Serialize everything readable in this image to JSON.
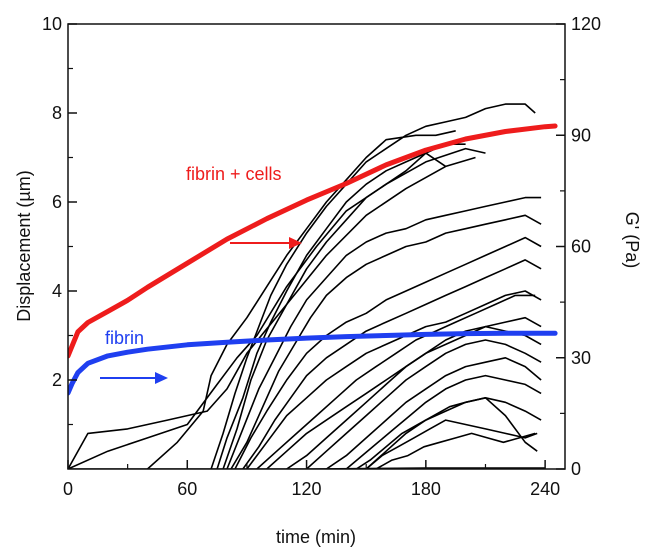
{
  "chart_data": {
    "type": "line",
    "xlabel": "time (min)",
    "ylabel": "Displacement (µm)",
    "y2label": "G' (Pa)",
    "xlim": [
      0,
      250
    ],
    "ylim": [
      0,
      10
    ],
    "y2lim": [
      0,
      120
    ],
    "x_ticks": [
      "0",
      "60",
      "120",
      "180",
      "240"
    ],
    "y_ticks": [
      "2",
      "4",
      "6",
      "8",
      "10"
    ],
    "y2_ticks": [
      "0",
      "30",
      "60",
      "90",
      "120"
    ],
    "annotations": {
      "fibrin_cells": "fibrin + cells",
      "fibrin": "fibrin"
    },
    "colors": {
      "fibrin_cells": "#ee1c1c",
      "fibrin": "#1f3ff0",
      "traces": "#000000"
    },
    "series": [
      {
        "name": "fibrin + cells",
        "axis": "right",
        "x": [
          0,
          5,
          10,
          20,
          30,
          40,
          60,
          80,
          100,
          120,
          140,
          160,
          180,
          200,
          220,
          240,
          245
        ],
        "y": [
          30.5,
          37,
          39.5,
          42.5,
          45.5,
          49,
          55.5,
          62,
          67.5,
          72.5,
          77,
          82,
          86,
          89,
          91,
          92.3,
          92.5
        ]
      },
      {
        "name": "fibrin",
        "axis": "right",
        "x": [
          0,
          2,
          5,
          10,
          20,
          30,
          40,
          60,
          80,
          100,
          120,
          140,
          160,
          180,
          200,
          220,
          240,
          245
        ],
        "y": [
          20.5,
          23,
          26,
          28.5,
          30.5,
          31.5,
          32.3,
          33.5,
          34.2,
          34.8,
          35.3,
          35.7,
          36,
          36.3,
          36.5,
          36.6,
          36.6,
          36.6
        ]
      }
    ],
    "traces": [
      {
        "x": [
          0,
          10,
          30,
          50,
          70,
          80,
          90,
          110,
          130,
          150,
          170,
          190,
          205
        ],
        "y": [
          0,
          0.8,
          0.9,
          1.1,
          1.3,
          1.8,
          2.6,
          3.7,
          4.8,
          5.7,
          6.3,
          6.8,
          7.0
        ]
      },
      {
        "x": [
          0,
          20,
          40,
          60,
          75,
          85,
          95,
          110,
          125,
          140,
          160,
          180,
          200,
          210
        ],
        "y": [
          0,
          0.4,
          0.7,
          1.0,
          1.9,
          2.5,
          3.0,
          4.1,
          5.0,
          5.8,
          6.4,
          6.9,
          7.2,
          7.1
        ]
      },
      {
        "x": [
          40,
          55,
          68,
          72,
          80,
          90,
          100,
          110,
          120,
          130,
          140,
          150,
          160,
          175,
          185,
          195
        ],
        "y": [
          0,
          0.6,
          1.3,
          2.1,
          2.8,
          3.4,
          4.1,
          4.8,
          5.4,
          6.0,
          6.5,
          7.0,
          7.4,
          7.5,
          7.5,
          7.6
        ]
      },
      {
        "x": [
          72,
          78,
          84,
          90,
          96,
          102,
          110,
          120,
          130,
          140,
          150,
          160,
          170,
          180,
          190,
          200,
          210,
          220,
          230,
          235
        ],
        "y": [
          0,
          0.8,
          1.7,
          2.5,
          3.2,
          3.9,
          4.6,
          5.3,
          5.9,
          6.4,
          6.9,
          7.2,
          7.5,
          7.7,
          7.8,
          7.9,
          8.1,
          8.2,
          8.2,
          8.0
        ]
      },
      {
        "x": [
          75,
          80,
          88,
          95,
          102,
          110,
          120,
          130,
          140,
          150,
          160,
          170,
          180,
          190,
          200
        ],
        "y": [
          0,
          0.7,
          1.6,
          2.6,
          3.3,
          4.0,
          4.8,
          5.4,
          6.0,
          6.4,
          6.7,
          6.9,
          7.1,
          7.3,
          7.3
        ]
      },
      {
        "x": [
          78,
          85,
          92,
          100,
          110,
          120,
          130,
          140,
          150,
          160,
          170,
          180,
          190
        ],
        "y": [
          0,
          0.9,
          2.0,
          2.9,
          3.7,
          4.5,
          5.1,
          5.6,
          6.1,
          6.4,
          6.7,
          7.1,
          6.8
        ]
      },
      {
        "x": [
          80,
          88,
          96,
          104,
          112,
          120,
          130,
          140,
          150,
          160,
          170,
          180,
          190,
          200,
          210,
          220,
          230,
          238
        ],
        "y": [
          0,
          0.9,
          1.8,
          2.5,
          3.2,
          3.8,
          4.3,
          4.8,
          5.1,
          5.3,
          5.4,
          5.6,
          5.7,
          5.8,
          5.9,
          6.0,
          6.1,
          6.1
        ]
      },
      {
        "x": [
          82,
          90,
          98,
          106,
          114,
          122,
          130,
          140,
          150,
          160,
          170,
          180,
          190,
          200,
          210,
          220,
          230,
          238
        ],
        "y": [
          0,
          0.6,
          1.4,
          2.2,
          2.8,
          3.4,
          3.9,
          4.3,
          4.6,
          4.8,
          5.0,
          5.1,
          5.3,
          5.4,
          5.5,
          5.6,
          5.7,
          5.5
        ]
      },
      {
        "x": [
          84,
          92,
          100,
          110,
          120,
          130,
          140,
          150,
          160,
          170,
          180,
          190,
          200,
          210,
          220,
          230,
          238
        ],
        "y": [
          0,
          0.7,
          1.3,
          2.0,
          2.6,
          3.0,
          3.3,
          3.5,
          3.8,
          4.0,
          4.2,
          4.4,
          4.6,
          4.8,
          5.0,
          5.2,
          5.0
        ]
      },
      {
        "x": [
          88,
          96,
          104,
          112,
          120,
          130,
          140,
          150,
          160,
          170,
          180,
          190,
          200,
          210,
          220,
          230,
          238
        ],
        "y": [
          0,
          0.5,
          1.1,
          1.6,
          2.1,
          2.5,
          2.8,
          3.1,
          3.3,
          3.5,
          3.7,
          3.9,
          4.1,
          4.3,
          4.5,
          4.7,
          4.5
        ]
      },
      {
        "x": [
          90,
          100,
          110,
          120,
          130,
          140,
          150,
          160,
          170,
          180,
          190,
          200,
          210,
          220,
          230,
          238
        ],
        "y": [
          0,
          0.6,
          1.2,
          1.6,
          2.0,
          2.3,
          2.6,
          2.8,
          3.0,
          3.2,
          3.3,
          3.5,
          3.7,
          3.9,
          4.0,
          3.8
        ]
      },
      {
        "x": [
          95,
          105,
          115,
          125,
          135,
          145,
          155,
          165,
          175,
          185,
          195,
          205,
          215,
          225,
          235
        ],
        "y": [
          0,
          0.4,
          0.8,
          1.2,
          1.6,
          2.0,
          2.3,
          2.6,
          2.9,
          3.1,
          3.3,
          3.5,
          3.7,
          3.9,
          3.9
        ]
      },
      {
        "x": [
          100,
          110,
          120,
          130,
          140,
          150,
          160,
          170,
          180,
          190,
          200,
          210,
          220,
          230,
          238
        ],
        "y": [
          0,
          0.4,
          0.8,
          1.1,
          1.4,
          1.7,
          2.0,
          2.3,
          2.6,
          2.8,
          3.0,
          3.2,
          3.3,
          3.4,
          3.2
        ]
      },
      {
        "x": [
          110,
          120,
          130,
          140,
          150,
          160,
          170,
          180,
          190,
          200,
          210,
          220,
          230,
          238
        ],
        "y": [
          0,
          0.3,
          0.7,
          1.1,
          1.5,
          1.9,
          2.3,
          2.6,
          2.9,
          3.1,
          3.2,
          3.1,
          3.0,
          2.8
        ]
      },
      {
        "x": [
          120,
          130,
          140,
          150,
          160,
          170,
          180,
          190,
          200,
          210,
          220,
          230,
          238
        ],
        "y": [
          0,
          0.4,
          0.8,
          1.2,
          1.6,
          2.0,
          2.3,
          2.6,
          2.8,
          2.9,
          2.8,
          2.6,
          2.4
        ]
      },
      {
        "x": [
          130,
          140,
          150,
          160,
          170,
          180,
          190,
          200,
          210,
          220,
          230,
          238
        ],
        "y": [
          0,
          0.3,
          0.7,
          1.1,
          1.5,
          1.8,
          2.1,
          2.3,
          2.4,
          2.5,
          2.3,
          2.0
        ]
      },
      {
        "x": [
          140,
          148,
          156,
          164,
          172,
          180,
          190,
          200,
          210,
          220,
          230,
          238
        ],
        "y": [
          0,
          0.3,
          0.6,
          0.9,
          1.2,
          1.5,
          1.8,
          2.0,
          2.1,
          2.0,
          1.9,
          1.7
        ]
      },
      {
        "x": [
          145,
          152,
          160,
          168,
          176,
          184,
          192,
          200,
          210,
          220,
          230,
          238
        ],
        "y": [
          0,
          0.2,
          0.5,
          0.8,
          1.0,
          1.2,
          1.4,
          1.5,
          1.6,
          1.5,
          1.3,
          1.1
        ]
      },
      {
        "x": [
          150,
          158,
          166,
          174,
          182,
          190,
          200,
          210,
          220,
          230,
          236
        ],
        "y": [
          0,
          0.3,
          0.5,
          0.7,
          0.9,
          1.1,
          1.0,
          0.9,
          0.8,
          0.7,
          0.8
        ]
      },
      {
        "x": [
          150,
          160,
          170,
          180,
          190,
          200,
          210,
          220,
          230,
          236
        ],
        "y": [
          0,
          0.4,
          0.8,
          1.1,
          1.3,
          1.5,
          1.6,
          1.2,
          0.6,
          0.4
        ]
      },
      {
        "x": [
          155,
          163,
          171,
          179,
          187,
          195,
          203,
          211,
          219,
          227,
          235
        ],
        "y": [
          0,
          0.2,
          0.3,
          0.5,
          0.6,
          0.7,
          0.8,
          0.7,
          0.6,
          0.7,
          0.8
        ]
      },
      {
        "x": [
          0,
          60,
          120,
          180,
          240
        ],
        "y": [
          0,
          0,
          0,
          0.02,
          0.02
        ]
      }
    ]
  }
}
